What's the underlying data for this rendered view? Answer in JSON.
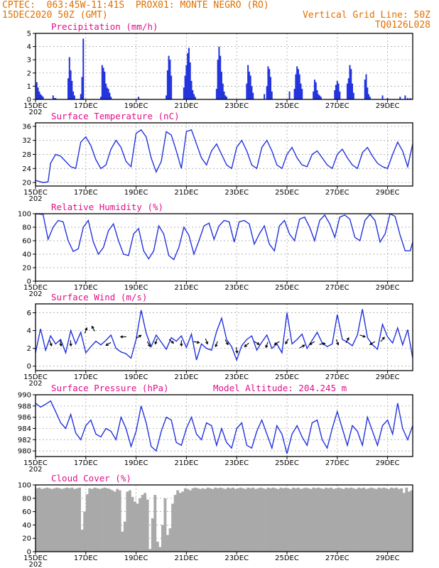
{
  "header": {
    "line1": "CPTEC:  063:45W-11:41S  PROX01: MONTE NEGRO (RO)",
    "line2": "15DEC2020 50Z (GMT)",
    "right1": "Vertical Grid Line: 50Z",
    "right2": "TQ0126L028"
  },
  "colors": {
    "header": "#e07000",
    "title": "#e0108a",
    "line": "#2233dd",
    "cloud": "#a9a9a9",
    "arrow": "#000000"
  },
  "x_axis": {
    "labels": [
      "15DEC",
      "17DEC",
      "19DEC",
      "21DEC",
      "23DEC",
      "25DEC",
      "27DEC",
      "29DEC"
    ],
    "label_days": [
      0,
      2,
      4,
      6,
      8,
      10,
      12,
      14
    ],
    "year_fragment": "202",
    "range_days": [
      0,
      15
    ]
  },
  "chart_data": [
    {
      "type": "bar",
      "title": "Precipitation (mm/h)",
      "ylim": [
        0,
        5
      ],
      "yticks": [
        0,
        1,
        2,
        3,
        4,
        5
      ],
      "x_unit": "days since 15DEC",
      "x": [
        0.05,
        0.1,
        0.15,
        0.2,
        0.25,
        0.3,
        0.7,
        0.75,
        0.8,
        1.3,
        1.35,
        1.4,
        1.45,
        1.5,
        1.55,
        1.8,
        1.85,
        1.9,
        2.6,
        2.65,
        2.7,
        2.75,
        2.8,
        2.85,
        2.9,
        2.95,
        3.0,
        4.1,
        5.2,
        5.25,
        5.3,
        5.35,
        5.4,
        5.9,
        5.95,
        6.0,
        6.05,
        6.1,
        6.15,
        6.2,
        6.25,
        6.3,
        6.35,
        7.2,
        7.25,
        7.3,
        7.35,
        7.4,
        7.45,
        7.5,
        7.55,
        7.6,
        8.4,
        8.45,
        8.5,
        8.55,
        8.6,
        8.65,
        9.1,
        9.2,
        9.25,
        9.3,
        9.35,
        9.4,
        10.1,
        10.3,
        10.35,
        10.4,
        10.45,
        10.5,
        10.55,
        10.6,
        11.05,
        11.1,
        11.15,
        11.2,
        11.25,
        11.3,
        11.35,
        11.9,
        11.95,
        12.0,
        12.05,
        12.1,
        12.4,
        12.45,
        12.5,
        12.55,
        12.6,
        12.65,
        13.1,
        13.15,
        13.2,
        13.25,
        13.3,
        13.8,
        14.0,
        14.5,
        14.7,
        14.8,
        14.9
      ],
      "values": [
        1.3,
        0.9,
        0.6,
        0.4,
        0.3,
        0.2,
        0.3,
        0.1,
        0.1,
        1.6,
        3.2,
        2.2,
        1.4,
        0.6,
        0.3,
        0.4,
        1.7,
        4.6,
        0.2,
        2.6,
        2.4,
        2.1,
        1.2,
        0.9,
        0.8,
        0.5,
        0.2,
        0.2,
        0.3,
        2.2,
        3.3,
        3.0,
        1.8,
        0.9,
        1.8,
        2.6,
        3.5,
        3.9,
        2.8,
        1.4,
        0.7,
        0.4,
        0.2,
        0.8,
        3.0,
        4.0,
        3.3,
        2.1,
        1.2,
        0.6,
        0.3,
        0.2,
        1.2,
        2.6,
        2.1,
        1.8,
        1.0,
        0.5,
        0.4,
        1.0,
        2.5,
        2.3,
        1.7,
        0.6,
        0.6,
        0.8,
        1.9,
        2.5,
        2.3,
        1.9,
        1.2,
        0.8,
        0.6,
        1.5,
        1.3,
        0.7,
        0.4,
        0.3,
        0.2,
        0.7,
        1.1,
        1.4,
        1.2,
        0.6,
        1.2,
        1.6,
        2.6,
        2.3,
        1.2,
        0.5,
        1.5,
        1.9,
        0.9,
        0.4,
        0.2,
        0.3,
        0.1,
        0.2,
        0.3,
        0.1,
        0.1
      ]
    },
    {
      "type": "line",
      "title": "Surface Temperature (nC)",
      "ylim": [
        19,
        37
      ],
      "yticks": [
        20,
        24,
        28,
        32,
        36
      ],
      "x_unit": "days since 15DEC",
      "x": [
        0,
        0.3,
        0.5,
        0.6,
        0.8,
        1.0,
        1.2,
        1.4,
        1.6,
        1.8,
        2.0,
        2.2,
        2.4,
        2.6,
        2.8,
        3.0,
        3.2,
        3.4,
        3.6,
        3.8,
        4.0,
        4.2,
        4.4,
        4.6,
        4.8,
        5.0,
        5.2,
        5.4,
        5.6,
        5.8,
        6.0,
        6.2,
        6.4,
        6.6,
        6.8,
        7.0,
        7.2,
        7.4,
        7.6,
        7.8,
        8.0,
        8.2,
        8.4,
        8.6,
        8.8,
        9.0,
        9.2,
        9.4,
        9.6,
        9.8,
        10.0,
        10.2,
        10.4,
        10.6,
        10.8,
        11.0,
        11.2,
        11.4,
        11.6,
        11.8,
        12.0,
        12.2,
        12.4,
        12.6,
        12.8,
        13.0,
        13.2,
        13.4,
        13.6,
        13.8,
        14.0,
        14.2,
        14.4,
        14.6,
        14.8,
        15.0
      ],
      "values": [
        20.6,
        20.0,
        20.2,
        25.5,
        28.0,
        27.5,
        26.0,
        24.5,
        24.0,
        31.5,
        33.0,
        30.5,
        26.5,
        24.0,
        25.0,
        29.5,
        32.0,
        30.0,
        26.0,
        24.5,
        34.0,
        35.0,
        33.0,
        27.0,
        23.0,
        26.0,
        34.5,
        33.5,
        29.0,
        24.0,
        34.5,
        35.0,
        31.0,
        27.0,
        25.0,
        29.0,
        31.0,
        28.0,
        25.0,
        24.0,
        30.0,
        32.0,
        29.0,
        25.0,
        24.0,
        30.0,
        32.0,
        29.0,
        25.0,
        24.0,
        28.0,
        30.0,
        27.0,
        25.0,
        24.5,
        28.0,
        29.0,
        27.0,
        25.0,
        24.0,
        28.0,
        29.5,
        27.0,
        25.0,
        24.0,
        28.5,
        30.0,
        27.5,
        25.5,
        24.5,
        24.0,
        28.0,
        31.5,
        29.0,
        24.5,
        31.0
      ]
    },
    {
      "type": "line",
      "title": "Relative Humidity (%)",
      "ylim": [
        0,
        100
      ],
      "yticks": [
        0,
        20,
        40,
        60,
        80,
        100
      ],
      "x_unit": "days since 15DEC",
      "x": [
        0,
        0.3,
        0.5,
        0.7,
        0.9,
        1.1,
        1.3,
        1.5,
        1.7,
        1.9,
        2.1,
        2.3,
        2.5,
        2.7,
        2.9,
        3.1,
        3.3,
        3.5,
        3.7,
        3.9,
        4.1,
        4.3,
        4.5,
        4.7,
        4.9,
        5.1,
        5.3,
        5.5,
        5.7,
        5.9,
        6.1,
        6.3,
        6.5,
        6.7,
        6.9,
        7.1,
        7.3,
        7.5,
        7.7,
        7.9,
        8.1,
        8.3,
        8.5,
        8.7,
        8.9,
        9.1,
        9.3,
        9.5,
        9.7,
        9.9,
        10.1,
        10.3,
        10.5,
        10.7,
        10.9,
        11.1,
        11.3,
        11.5,
        11.7,
        11.9,
        12.1,
        12.3,
        12.5,
        12.7,
        12.9,
        13.1,
        13.3,
        13.5,
        13.7,
        13.9,
        14.1,
        14.3,
        14.5,
        14.7,
        14.9,
        15.0
      ],
      "values": [
        100,
        99,
        62,
        80,
        90,
        88,
        60,
        44,
        48,
        80,
        90,
        58,
        40,
        50,
        75,
        85,
        60,
        40,
        38,
        70,
        78,
        45,
        33,
        45,
        82,
        70,
        38,
        32,
        50,
        80,
        68,
        40,
        60,
        82,
        86,
        62,
        82,
        90,
        88,
        58,
        88,
        90,
        85,
        55,
        70,
        82,
        55,
        45,
        82,
        90,
        70,
        60,
        92,
        95,
        80,
        60,
        90,
        98,
        85,
        65,
        95,
        98,
        92,
        65,
        60,
        90,
        99,
        90,
        58,
        70,
        100,
        96,
        68,
        45,
        45,
        58
      ]
    },
    {
      "type": "line",
      "title": "Surface Wind (m/s)",
      "ylim": [
        -0.5,
        7
      ],
      "yticks": [
        0,
        2,
        4,
        6
      ],
      "x_unit": "days since 15DEC",
      "x": [
        0,
        0.2,
        0.4,
        0.6,
        0.8,
        1.0,
        1.2,
        1.4,
        1.6,
        1.8,
        2.0,
        2.2,
        2.4,
        2.6,
        2.8,
        3.0,
        3.2,
        3.4,
        3.6,
        3.8,
        4.0,
        4.2,
        4.4,
        4.6,
        4.8,
        5.0,
        5.2,
        5.4,
        5.6,
        5.8,
        6.0,
        6.2,
        6.4,
        6.6,
        6.8,
        7.0,
        7.2,
        7.4,
        7.6,
        7.8,
        8.0,
        8.2,
        8.4,
        8.6,
        8.8,
        9.0,
        9.2,
        9.4,
        9.6,
        9.8,
        10.0,
        10.2,
        10.4,
        10.6,
        10.8,
        11.0,
        11.2,
        11.4,
        11.6,
        11.8,
        12.0,
        12.2,
        12.4,
        12.6,
        12.8,
        13.0,
        13.2,
        13.4,
        13.6,
        13.8,
        14.0,
        14.2,
        14.4,
        14.6,
        14.8,
        15.0
      ],
      "values": [
        1.5,
        4.2,
        1.8,
        3.4,
        2.5,
        3.0,
        1.5,
        4.0,
        2.5,
        3.8,
        1.5,
        2.2,
        2.8,
        2.4,
        2.9,
        3.5,
        2.0,
        1.6,
        1.4,
        0.9,
        3.0,
        6.3,
        3.7,
        2.2,
        3.5,
        2.7,
        1.9,
        3.2,
        2.8,
        3.4,
        2.1,
        3.6,
        0.7,
        2.5,
        2.0,
        1.8,
        3.9,
        5.4,
        3.0,
        2.2,
        0.7,
        2.3,
        3.0,
        3.4,
        1.8,
        2.7,
        3.5,
        2.0,
        2.5,
        1.5,
        6.0,
        2.5,
        3.0,
        3.6,
        2.0,
        2.9,
        3.8,
        2.6,
        2.2,
        2.5,
        5.8,
        3.0,
        2.7,
        2.3,
        3.5,
        6.4,
        3.2,
        2.4,
        1.9,
        4.7,
        3.3,
        2.6,
        4.3,
        2.4,
        4.1,
        0.9
      ],
      "wind_arrows": [
        {
          "x": 0.6,
          "y": 2.6,
          "angle": 160
        },
        {
          "x": 1.0,
          "y": 2.6,
          "angle": 170
        },
        {
          "x": 1.4,
          "y": 2.6,
          "angle": 175
        },
        {
          "x": 2.0,
          "y": 4.0,
          "angle": 20
        },
        {
          "x": 2.3,
          "y": 4.2,
          "angle": 330
        },
        {
          "x": 2.9,
          "y": 2.5,
          "angle": 240
        },
        {
          "x": 3.5,
          "y": 3.3,
          "angle": 270
        },
        {
          "x": 4.1,
          "y": 3.3,
          "angle": 60
        },
        {
          "x": 4.5,
          "y": 2.5,
          "angle": 150
        },
        {
          "x": 4.8,
          "y": 2.8,
          "angle": 200
        },
        {
          "x": 5.4,
          "y": 2.8,
          "angle": 130
        },
        {
          "x": 5.8,
          "y": 2.6,
          "angle": 180
        },
        {
          "x": 6.4,
          "y": 2.7,
          "angle": 100
        },
        {
          "x": 6.8,
          "y": 2.8,
          "angle": 160
        },
        {
          "x": 7.2,
          "y": 2.5,
          "angle": 200
        },
        {
          "x": 7.6,
          "y": 2.7,
          "angle": 150
        },
        {
          "x": 8.0,
          "y": 1.8,
          "angle": 170
        },
        {
          "x": 8.4,
          "y": 2.4,
          "angle": 230
        },
        {
          "x": 8.8,
          "y": 2.6,
          "angle": 120
        },
        {
          "x": 9.2,
          "y": 2.4,
          "angle": 200
        },
        {
          "x": 9.6,
          "y": 2.6,
          "angle": 240
        },
        {
          "x": 10.0,
          "y": 2.8,
          "angle": 210
        },
        {
          "x": 10.6,
          "y": 2.2,
          "angle": 60
        },
        {
          "x": 11.0,
          "y": 2.6,
          "angle": 240
        },
        {
          "x": 11.4,
          "y": 2.5,
          "angle": 80
        },
        {
          "x": 12.0,
          "y": 2.7,
          "angle": 160
        },
        {
          "x": 12.4,
          "y": 2.9,
          "angle": 30
        },
        {
          "x": 13.0,
          "y": 3.4,
          "angle": 110
        },
        {
          "x": 13.4,
          "y": 2.6,
          "angle": 240
        },
        {
          "x": 13.8,
          "y": 3.0,
          "angle": 40
        }
      ]
    },
    {
      "type": "line",
      "title": "Surface Pressure (hPa)",
      "subtitle": "Model Altitude: 204.245  m",
      "ylim": [
        979,
        990
      ],
      "yticks": [
        980,
        982,
        984,
        986,
        988,
        990
      ],
      "x_unit": "days since 15DEC",
      "x": [
        0,
        0.2,
        0.4,
        0.6,
        0.8,
        1.0,
        1.2,
        1.4,
        1.6,
        1.8,
        2.0,
        2.2,
        2.4,
        2.6,
        2.8,
        3.0,
        3.2,
        3.4,
        3.6,
        3.8,
        4.0,
        4.2,
        4.4,
        4.6,
        4.8,
        5.0,
        5.2,
        5.4,
        5.6,
        5.8,
        6.0,
        6.2,
        6.4,
        6.6,
        6.8,
        7.0,
        7.2,
        7.4,
        7.6,
        7.8,
        8.0,
        8.2,
        8.4,
        8.6,
        8.8,
        9.0,
        9.2,
        9.4,
        9.6,
        9.8,
        10.0,
        10.2,
        10.4,
        10.6,
        10.8,
        11.0,
        11.2,
        11.4,
        11.6,
        11.8,
        12.0,
        12.2,
        12.4,
        12.6,
        12.8,
        13.0,
        13.2,
        13.4,
        13.6,
        13.8,
        14.0,
        14.2,
        14.4,
        14.6,
        14.8,
        15.0
      ],
      "values": [
        988.5,
        987.8,
        988.3,
        988.9,
        987.0,
        985.0,
        984.0,
        986.5,
        983.2,
        982.0,
        984.5,
        985.5,
        983.0,
        982.5,
        984.0,
        983.5,
        982.0,
        986.0,
        984.0,
        980.8,
        983.5,
        988.0,
        985.0,
        980.8,
        980.0,
        983.5,
        986.0,
        985.5,
        981.5,
        981.0,
        984.0,
        986.0,
        983.0,
        982.0,
        985.0,
        984.5,
        981.0,
        984.0,
        981.5,
        980.5,
        984.0,
        985.0,
        981.0,
        980.5,
        983.5,
        985.5,
        983.0,
        980.5,
        984.5,
        983.0,
        979.5,
        983.0,
        984.5,
        982.5,
        981.0,
        985.0,
        985.5,
        982.0,
        980.5,
        984.0,
        987.0,
        984.0,
        981.0,
        984.5,
        983.5,
        981.0,
        986.0,
        983.5,
        981.0,
        984.5,
        985.5,
        983.0,
        988.5,
        984.0,
        982.0,
        984.5
      ]
    },
    {
      "type": "bar",
      "title": "Cloud Cover (%)",
      "ylim": [
        0,
        100
      ],
      "yticks": [
        0,
        20,
        40,
        60,
        80,
        100
      ],
      "x_unit": "days since 15DEC",
      "x": [
        0.0,
        0.1,
        0.2,
        0.3,
        0.4,
        0.5,
        0.6,
        0.7,
        0.8,
        0.9,
        1.0,
        1.1,
        1.2,
        1.3,
        1.4,
        1.5,
        1.6,
        1.7,
        1.8,
        1.9,
        2.0,
        2.1,
        2.2,
        2.3,
        2.4,
        2.5,
        2.6,
        2.7,
        2.8,
        2.9,
        3.0,
        3.1,
        3.2,
        3.3,
        3.4,
        3.5,
        3.6,
        3.7,
        3.8,
        3.9,
        4.0,
        4.1,
        4.2,
        4.3,
        4.4,
        4.5,
        4.6,
        4.7,
        4.8,
        4.9,
        5.0,
        5.1,
        5.2,
        5.3,
        5.4,
        5.5,
        5.6,
        5.7,
        5.8,
        5.9,
        6.0,
        6.1,
        6.2,
        6.3,
        6.4,
        6.5,
        6.6,
        6.7,
        6.8,
        6.9,
        7.0,
        7.1,
        7.2,
        7.3,
        7.4,
        7.5,
        7.6,
        7.7,
        7.8,
        7.9,
        8.0,
        8.1,
        8.2,
        8.3,
        8.4,
        8.5,
        8.6,
        8.7,
        8.8,
        8.9,
        9.0,
        9.1,
        9.2,
        9.3,
        9.4,
        9.5,
        9.6,
        9.7,
        9.8,
        9.9,
        10.0,
        10.1,
        10.2,
        10.3,
        10.4,
        10.5,
        10.6,
        10.7,
        10.8,
        10.9,
        11.0,
        11.1,
        11.2,
        11.3,
        11.4,
        11.5,
        11.6,
        11.7,
        11.8,
        11.9,
        12.0,
        12.1,
        12.2,
        12.3,
        12.4,
        12.5,
        12.6,
        12.7,
        12.8,
        12.9,
        13.0,
        13.1,
        13.2,
        13.3,
        13.4,
        13.5,
        13.6,
        13.7,
        13.8,
        13.9,
        14.0,
        14.1,
        14.2,
        14.3,
        14.4,
        14.5,
        14.6,
        14.7,
        14.8,
        14.9
      ],
      "values": [
        95,
        96,
        94,
        95,
        96,
        95,
        94,
        95,
        96,
        95,
        94,
        95,
        96,
        95,
        96,
        94,
        95,
        96,
        33,
        60,
        86,
        95,
        94,
        96,
        95,
        94,
        95,
        96,
        95,
        94,
        92,
        90,
        94,
        92,
        30,
        45,
        90,
        92,
        82,
        75,
        72,
        80,
        85,
        88,
        78,
        4,
        50,
        85,
        15,
        7,
        40,
        80,
        25,
        35,
        72,
        85,
        92,
        88,
        90,
        95,
        94,
        92,
        95,
        96,
        95,
        94,
        95,
        94,
        96,
        95,
        94,
        96,
        95,
        96,
        95,
        94,
        96,
        95,
        96,
        94,
        95,
        96,
        95,
        94,
        96,
        95,
        96,
        94,
        95,
        96,
        95,
        94,
        96,
        95,
        96,
        95,
        94,
        96,
        95,
        96,
        95,
        94,
        96,
        95,
        96,
        94,
        95,
        96,
        95,
        94,
        96,
        95,
        96,
        95,
        94,
        96,
        95,
        96,
        94,
        95,
        96,
        95,
        94,
        96,
        95,
        96,
        95,
        94,
        96,
        95,
        96,
        94,
        95,
        96,
        95,
        94,
        96,
        95,
        96,
        95,
        94,
        96,
        95,
        96,
        94,
        95,
        88,
        96,
        90,
        92
      ]
    }
  ]
}
